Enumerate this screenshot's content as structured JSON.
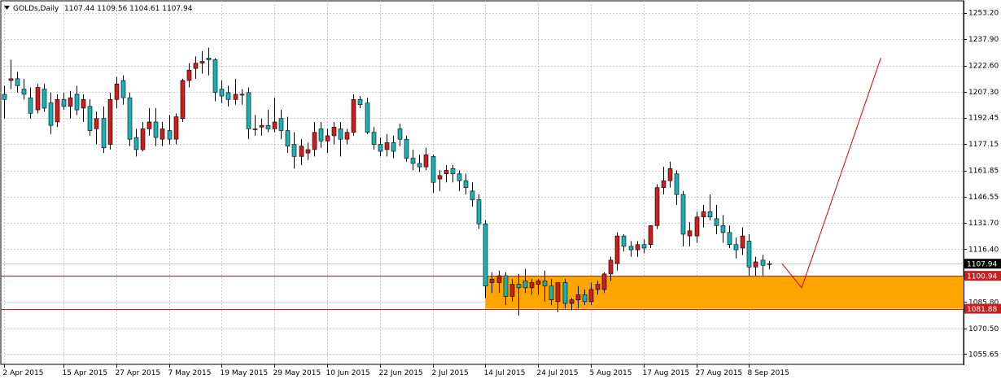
{
  "header": {
    "symbol_timeframe": "GOLDs,Daily",
    "ohlc": "1107.44 1109.56 1104.61 1107.94",
    "menu_icon": "triangle-down-icon"
  },
  "colors": {
    "background": "#ffffff",
    "bull": "#cc1e1e",
    "bear": "#1ab1b5",
    "wick": "#000000",
    "grid": "#c8c8c8",
    "zone_fill": "#ffa500",
    "level_line": "#cc1e1e",
    "projection_line": "#dd0000",
    "current_price_tag_bg": "#000000",
    "current_price_tag_fg": "#ffffff",
    "level_tag_bg": "#cc1e1e",
    "level_tag_fg": "#ffffff"
  },
  "chart_data": {
    "type": "candlestick",
    "symbol": "GOLDs",
    "timeframe": "Daily",
    "y_axis_ticks": [
      "1253.20",
      "1237.90",
      "1222.60",
      "1207.30",
      "1192.45",
      "1177.15",
      "1161.85",
      "1146.55",
      "1131.70",
      "1116.40",
      "1085.80",
      "1070.50",
      "1055.65"
    ],
    "ylim": [
      1050.0,
      1260.0
    ],
    "x_axis_labels": [
      {
        "label": "2 Apr 2015",
        "bar": 0
      },
      {
        "label": "15 Apr 2015",
        "bar": 9
      },
      {
        "label": "27 Apr 2015",
        "bar": 17
      },
      {
        "label": "7 May 2015",
        "bar": 25
      },
      {
        "label": "19 May 2015",
        "bar": 33
      },
      {
        "label": "29 May 2015",
        "bar": 41
      },
      {
        "label": "10 Jun 2015",
        "bar": 49
      },
      {
        "label": "22 Jun 2015",
        "bar": 57
      },
      {
        "label": "2 Jul 2015",
        "bar": 65
      },
      {
        "label": "14 Jul 2015",
        "bar": 73
      },
      {
        "label": "24 Jul 2015",
        "bar": 81
      },
      {
        "label": "5 Aug 2015",
        "bar": 89
      },
      {
        "label": "17 Aug 2015",
        "bar": 97
      },
      {
        "label": "27 Aug 2015",
        "bar": 105
      },
      {
        "label": "8 Sep 2015",
        "bar": 113
      }
    ],
    "candles": [
      {
        "o": 1206.0,
        "h": 1211.0,
        "l": 1192.0,
        "c": 1203.0
      },
      {
        "o": 1214.0,
        "h": 1226.0,
        "l": 1209.0,
        "c": 1215.0
      },
      {
        "o": 1215.0,
        "h": 1219.0,
        "l": 1207.0,
        "c": 1211.0
      },
      {
        "o": 1209.0,
        "h": 1215.0,
        "l": 1203.0,
        "c": 1206.0
      },
      {
        "o": 1204.0,
        "h": 1210.0,
        "l": 1192.0,
        "c": 1195.0
      },
      {
        "o": 1197.0,
        "h": 1212.0,
        "l": 1195.0,
        "c": 1210.0
      },
      {
        "o": 1209.0,
        "h": 1212.0,
        "l": 1196.0,
        "c": 1198.0
      },
      {
        "o": 1201.0,
        "h": 1207.0,
        "l": 1183.0,
        "c": 1188.0
      },
      {
        "o": 1190.0,
        "h": 1206.0,
        "l": 1187.0,
        "c": 1203.0
      },
      {
        "o": 1203.0,
        "h": 1207.0,
        "l": 1197.0,
        "c": 1199.0
      },
      {
        "o": 1199.0,
        "h": 1208.0,
        "l": 1192.0,
        "c": 1204.0
      },
      {
        "o": 1206.0,
        "h": 1211.0,
        "l": 1194.0,
        "c": 1197.0
      },
      {
        "o": 1198.0,
        "h": 1206.0,
        "l": 1190.0,
        "c": 1203.0
      },
      {
        "o": 1199.0,
        "h": 1203.0,
        "l": 1182.0,
        "c": 1185.0
      },
      {
        "o": 1186.0,
        "h": 1196.0,
        "l": 1177.0,
        "c": 1192.0
      },
      {
        "o": 1192.0,
        "h": 1199.0,
        "l": 1172.0,
        "c": 1175.0
      },
      {
        "o": 1177.0,
        "h": 1207.0,
        "l": 1174.0,
        "c": 1203.0
      },
      {
        "o": 1203.0,
        "h": 1216.0,
        "l": 1198.0,
        "c": 1212.0
      },
      {
        "o": 1214.0,
        "h": 1217.0,
        "l": 1200.0,
        "c": 1204.0
      },
      {
        "o": 1204.0,
        "h": 1207.0,
        "l": 1176.0,
        "c": 1180.0
      },
      {
        "o": 1181.0,
        "h": 1186.0,
        "l": 1170.0,
        "c": 1174.0
      },
      {
        "o": 1174.0,
        "h": 1190.0,
        "l": 1173.0,
        "c": 1186.0
      },
      {
        "o": 1186.0,
        "h": 1198.0,
        "l": 1182.0,
        "c": 1190.0
      },
      {
        "o": 1190.0,
        "h": 1198.0,
        "l": 1176.0,
        "c": 1181.0
      },
      {
        "o": 1180.0,
        "h": 1190.0,
        "l": 1176.0,
        "c": 1186.0
      },
      {
        "o": 1185.0,
        "h": 1194.0,
        "l": 1177.0,
        "c": 1180.0
      },
      {
        "o": 1180.0,
        "h": 1195.0,
        "l": 1177.0,
        "c": 1193.0
      },
      {
        "o": 1192.0,
        "h": 1215.0,
        "l": 1190.0,
        "c": 1214.0
      },
      {
        "o": 1214.0,
        "h": 1224.0,
        "l": 1210.0,
        "c": 1220.0
      },
      {
        "o": 1221.0,
        "h": 1228.0,
        "l": 1215.0,
        "c": 1224.0
      },
      {
        "o": 1224.0,
        "h": 1231.0,
        "l": 1218.0,
        "c": 1225.0
      },
      {
        "o": 1227.0,
        "h": 1233.0,
        "l": 1217.0,
        "c": 1226.0
      },
      {
        "o": 1226.0,
        "h": 1227.0,
        "l": 1202.0,
        "c": 1207.0
      },
      {
        "o": 1209.0,
        "h": 1214.0,
        "l": 1201.0,
        "c": 1205.0
      },
      {
        "o": 1207.0,
        "h": 1211.0,
        "l": 1199.0,
        "c": 1203.0
      },
      {
        "o": 1203.0,
        "h": 1215.0,
        "l": 1200.0,
        "c": 1206.0
      },
      {
        "o": 1206.0,
        "h": 1209.0,
        "l": 1200.0,
        "c": 1206.0
      },
      {
        "o": 1207.0,
        "h": 1210.0,
        "l": 1180.0,
        "c": 1186.0
      },
      {
        "o": 1186.0,
        "h": 1194.0,
        "l": 1182.0,
        "c": 1186.0
      },
      {
        "o": 1187.0,
        "h": 1192.0,
        "l": 1182.0,
        "c": 1188.0
      },
      {
        "o": 1188.0,
        "h": 1197.0,
        "l": 1184.0,
        "c": 1186.0
      },
      {
        "o": 1186.0,
        "h": 1204.0,
        "l": 1184.0,
        "c": 1190.0
      },
      {
        "o": 1192.0,
        "h": 1197.0,
        "l": 1180.0,
        "c": 1185.0
      },
      {
        "o": 1185.0,
        "h": 1193.0,
        "l": 1172.0,
        "c": 1176.0
      },
      {
        "o": 1177.0,
        "h": 1184.0,
        "l": 1163.0,
        "c": 1170.0
      },
      {
        "o": 1170.0,
        "h": 1180.0,
        "l": 1165.0,
        "c": 1176.0
      },
      {
        "o": 1172.0,
        "h": 1178.0,
        "l": 1168.0,
        "c": 1174.0
      },
      {
        "o": 1174.0,
        "h": 1190.0,
        "l": 1170.0,
        "c": 1184.0
      },
      {
        "o": 1186.0,
        "h": 1190.0,
        "l": 1175.0,
        "c": 1179.0
      },
      {
        "o": 1179.0,
        "h": 1186.0,
        "l": 1172.0,
        "c": 1182.0
      },
      {
        "o": 1182.0,
        "h": 1190.0,
        "l": 1177.0,
        "c": 1187.0
      },
      {
        "o": 1186.0,
        "h": 1190.0,
        "l": 1170.0,
        "c": 1180.0
      },
      {
        "o": 1180.0,
        "h": 1186.0,
        "l": 1177.0,
        "c": 1184.0
      },
      {
        "o": 1184.0,
        "h": 1206.0,
        "l": 1182.0,
        "c": 1203.0
      },
      {
        "o": 1203.0,
        "h": 1205.0,
        "l": 1198.0,
        "c": 1200.0
      },
      {
        "o": 1201.0,
        "h": 1204.0,
        "l": 1183.0,
        "c": 1184.0
      },
      {
        "o": 1184.0,
        "h": 1187.0,
        "l": 1174.0,
        "c": 1177.0
      },
      {
        "o": 1177.0,
        "h": 1181.0,
        "l": 1170.0,
        "c": 1173.0
      },
      {
        "o": 1174.0,
        "h": 1183.0,
        "l": 1170.0,
        "c": 1178.0
      },
      {
        "o": 1178.0,
        "h": 1182.0,
        "l": 1169.0,
        "c": 1173.0
      },
      {
        "o": 1186.0,
        "h": 1189.0,
        "l": 1176.0,
        "c": 1180.0
      },
      {
        "o": 1180.0,
        "h": 1182.0,
        "l": 1167.0,
        "c": 1169.0
      },
      {
        "o": 1169.0,
        "h": 1174.0,
        "l": 1162.0,
        "c": 1166.0
      },
      {
        "o": 1166.0,
        "h": 1171.0,
        "l": 1161.0,
        "c": 1164.0
      },
      {
        "o": 1164.0,
        "h": 1175.0,
        "l": 1162.0,
        "c": 1171.0
      },
      {
        "o": 1170.0,
        "h": 1171.0,
        "l": 1149.0,
        "c": 1155.0
      },
      {
        "o": 1157.0,
        "h": 1162.0,
        "l": 1150.0,
        "c": 1159.0
      },
      {
        "o": 1160.0,
        "h": 1165.0,
        "l": 1155.0,
        "c": 1162.0
      },
      {
        "o": 1163.0,
        "h": 1165.0,
        "l": 1155.0,
        "c": 1160.0
      },
      {
        "o": 1160.0,
        "h": 1162.0,
        "l": 1150.0,
        "c": 1156.0
      },
      {
        "o": 1156.0,
        "h": 1160.0,
        "l": 1148.0,
        "c": 1152.0
      },
      {
        "o": 1150.0,
        "h": 1155.0,
        "l": 1141.0,
        "c": 1145.0
      },
      {
        "o": 1145.0,
        "h": 1148.0,
        "l": 1128.0,
        "c": 1131.0
      },
      {
        "o": 1131.0,
        "h": 1133.0,
        "l": 1088.0,
        "c": 1095.0
      },
      {
        "o": 1097.0,
        "h": 1103.0,
        "l": 1091.0,
        "c": 1099.0
      },
      {
        "o": 1097.0,
        "h": 1104.0,
        "l": 1091.0,
        "c": 1101.0
      },
      {
        "o": 1101.0,
        "h": 1103.0,
        "l": 1084.0,
        "c": 1089.0
      },
      {
        "o": 1089.0,
        "h": 1099.0,
        "l": 1086.0,
        "c": 1096.0
      },
      {
        "o": 1096.0,
        "h": 1102.0,
        "l": 1078.0,
        "c": 1094.0
      },
      {
        "o": 1098.0,
        "h": 1105.0,
        "l": 1091.0,
        "c": 1094.0
      },
      {
        "o": 1094.0,
        "h": 1099.0,
        "l": 1090.0,
        "c": 1097.0
      },
      {
        "o": 1096.0,
        "h": 1099.0,
        "l": 1090.0,
        "c": 1098.0
      },
      {
        "o": 1098.0,
        "h": 1104.0,
        "l": 1086.0,
        "c": 1095.0
      },
      {
        "o": 1095.0,
        "h": 1099.0,
        "l": 1084.0,
        "c": 1087.0
      },
      {
        "o": 1086.0,
        "h": 1097.0,
        "l": 1080.0,
        "c": 1097.0
      },
      {
        "o": 1097.0,
        "h": 1099.0,
        "l": 1082.0,
        "c": 1085.0
      },
      {
        "o": 1085.0,
        "h": 1088.0,
        "l": 1081.0,
        "c": 1087.0
      },
      {
        "o": 1087.0,
        "h": 1095.0,
        "l": 1082.0,
        "c": 1090.0
      },
      {
        "o": 1090.0,
        "h": 1093.0,
        "l": 1084.0,
        "c": 1086.0
      },
      {
        "o": 1086.0,
        "h": 1097.0,
        "l": 1084.0,
        "c": 1093.0
      },
      {
        "o": 1093.0,
        "h": 1098.0,
        "l": 1090.0,
        "c": 1096.0
      },
      {
        "o": 1093.0,
        "h": 1103.0,
        "l": 1091.0,
        "c": 1102.0
      },
      {
        "o": 1102.0,
        "h": 1112.0,
        "l": 1098.0,
        "c": 1110.0
      },
      {
        "o": 1108.0,
        "h": 1126.0,
        "l": 1104.0,
        "c": 1124.0
      },
      {
        "o": 1124.0,
        "h": 1125.0,
        "l": 1115.0,
        "c": 1118.0
      },
      {
        "o": 1118.0,
        "h": 1121.0,
        "l": 1112.0,
        "c": 1116.0
      },
      {
        "o": 1116.0,
        "h": 1121.0,
        "l": 1112.0,
        "c": 1119.0
      },
      {
        "o": 1119.0,
        "h": 1122.0,
        "l": 1114.0,
        "c": 1117.0
      },
      {
        "o": 1119.0,
        "h": 1130.0,
        "l": 1117.0,
        "c": 1130.0
      },
      {
        "o": 1130.0,
        "h": 1154.0,
        "l": 1128.0,
        "c": 1152.0
      },
      {
        "o": 1152.0,
        "h": 1164.0,
        "l": 1148.0,
        "c": 1156.0
      },
      {
        "o": 1156.0,
        "h": 1167.0,
        "l": 1152.0,
        "c": 1163.0
      },
      {
        "o": 1160.0,
        "h": 1162.0,
        "l": 1142.0,
        "c": 1148.0
      },
      {
        "o": 1148.0,
        "h": 1150.0,
        "l": 1118.0,
        "c": 1125.0
      },
      {
        "o": 1124.0,
        "h": 1132.0,
        "l": 1118.0,
        "c": 1127.0
      },
      {
        "o": 1124.0,
        "h": 1138.0,
        "l": 1120.0,
        "c": 1135.0
      },
      {
        "o": 1135.0,
        "h": 1142.0,
        "l": 1129.0,
        "c": 1138.0
      },
      {
        "o": 1138.0,
        "h": 1148.0,
        "l": 1133.0,
        "c": 1135.0
      },
      {
        "o": 1134.0,
        "h": 1142.0,
        "l": 1125.0,
        "c": 1130.0
      },
      {
        "o": 1130.0,
        "h": 1136.0,
        "l": 1120.0,
        "c": 1126.0
      },
      {
        "o": 1126.0,
        "h": 1130.0,
        "l": 1117.0,
        "c": 1119.0
      },
      {
        "o": 1119.0,
        "h": 1123.0,
        "l": 1111.0,
        "c": 1116.0
      },
      {
        "o": 1117.0,
        "h": 1129.0,
        "l": 1113.0,
        "c": 1124.0
      },
      {
        "o": 1121.0,
        "h": 1125.0,
        "l": 1101.0,
        "c": 1106.0
      },
      {
        "o": 1106.0,
        "h": 1112.0,
        "l": 1101.0,
        "c": 1109.0
      },
      {
        "o": 1110.0,
        "h": 1113.0,
        "l": 1101.0,
        "c": 1107.0
      },
      {
        "o": 1107.44,
        "h": 1109.56,
        "l": 1104.61,
        "c": 1107.94
      }
    ],
    "support_zone": {
      "upper": 1100.94,
      "lower": 1081.88
    },
    "horizontal_levels": [
      {
        "price": 1100.94,
        "label": "1100.94"
      },
      {
        "price": 1081.88,
        "label": "1081.88"
      }
    ],
    "current_price": {
      "price": 1107.94,
      "label": "1107.94"
    },
    "projection_path": [
      {
        "bar": 118,
        "price": 1108.0
      },
      {
        "bar": 121,
        "price": 1094.0
      },
      {
        "bar": 133,
        "price": 1227.0
      }
    ]
  }
}
